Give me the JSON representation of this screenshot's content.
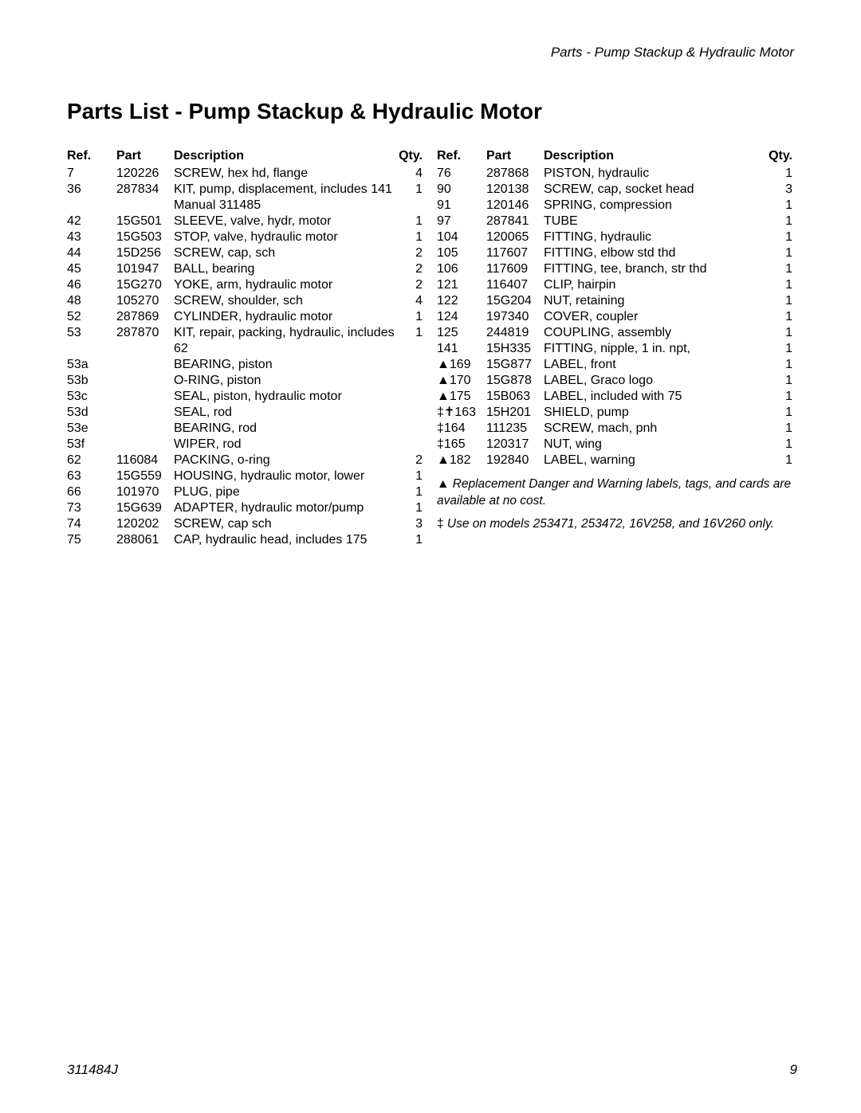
{
  "header": {
    "section": "Parts - Pump Stackup & Hydraulic Motor"
  },
  "title": "Parts List - Pump Stackup & Hydraulic Motor",
  "table_head": {
    "ref": "Ref.",
    "part": "Part",
    "desc": "Description",
    "qty": "Qty."
  },
  "left_rows": [
    {
      "ref": "7",
      "part": "120226",
      "desc": "SCREW, hex hd, flange",
      "qty": "4"
    },
    {
      "ref": "36",
      "part": "287834",
      "desc": "KIT, pump, displacement, includes 141",
      "qty": "1"
    },
    {
      "ref": "",
      "part": "",
      "desc": "Manual 311485",
      "qty": ""
    },
    {
      "ref": "42",
      "part": "15G501",
      "desc": "SLEEVE, valve, hydr, motor",
      "qty": "1"
    },
    {
      "ref": "43",
      "part": "15G503",
      "desc": "STOP, valve, hydraulic motor",
      "qty": "1"
    },
    {
      "ref": "44",
      "part": "15D256",
      "desc": "SCREW, cap, sch",
      "qty": "2"
    },
    {
      "ref": "45",
      "part": "101947",
      "desc": "BALL, bearing",
      "qty": "2"
    },
    {
      "ref": "46",
      "part": "15G270",
      "desc": "YOKE, arm, hydraulic motor",
      "qty": "2"
    },
    {
      "ref": "48",
      "part": "105270",
      "desc": "SCREW, shoulder, sch",
      "qty": "4"
    },
    {
      "ref": "52",
      "part": "287869",
      "desc": "CYLINDER, hydraulic motor",
      "qty": "1"
    },
    {
      "ref": "53",
      "part": "287870",
      "desc": "KIT, repair, packing, hydraulic, includes 62",
      "qty": "1"
    },
    {
      "ref": "53a",
      "part": "",
      "desc": "BEARING, piston",
      "qty": ""
    },
    {
      "ref": "53b",
      "part": "",
      "desc": "O-RING, piston",
      "qty": ""
    },
    {
      "ref": "53c",
      "part": "",
      "desc": "SEAL, piston, hydraulic motor",
      "qty": ""
    },
    {
      "ref": "53d",
      "part": "",
      "desc": "SEAL, rod",
      "qty": ""
    },
    {
      "ref": "53e",
      "part": "",
      "desc": "BEARING, rod",
      "qty": ""
    },
    {
      "ref": "53f",
      "part": "",
      "desc": "WIPER, rod",
      "qty": ""
    },
    {
      "ref": "62",
      "part": "116084",
      "desc": "PACKING, o-ring",
      "qty": "2"
    },
    {
      "ref": "63",
      "part": "15G559",
      "desc": "HOUSING, hydraulic motor, lower",
      "qty": "1"
    },
    {
      "ref": "66",
      "part": "101970",
      "desc": "PLUG, pipe",
      "qty": "1"
    },
    {
      "ref": "73",
      "part": "15G639",
      "desc": "ADAPTER, hydraulic motor/pump",
      "qty": "1"
    },
    {
      "ref": "74",
      "part": "120202",
      "desc": "SCREW, cap sch",
      "qty": "3"
    },
    {
      "ref": "75",
      "part": "288061",
      "desc": "CAP, hydraulic head, includes 175",
      "qty": "1"
    }
  ],
  "right_rows": [
    {
      "ref": "76",
      "part": "287868",
      "desc": "PISTON, hydraulic",
      "qty": "1"
    },
    {
      "ref": "90",
      "part": "120138",
      "desc": "SCREW, cap, socket head",
      "qty": "3"
    },
    {
      "ref": "91",
      "part": "120146",
      "desc": "SPRING, compression",
      "qty": "1"
    },
    {
      "ref": "97",
      "part": "287841",
      "desc": "TUBE",
      "qty": "1"
    },
    {
      "ref": "104",
      "part": "120065",
      "desc": "FITTING, hydraulic",
      "qty": "1"
    },
    {
      "ref": "105",
      "part": "117607",
      "desc": "FITTING, elbow std thd",
      "qty": "1"
    },
    {
      "ref": "106",
      "part": "117609",
      "desc": "FITTING, tee, branch, str thd",
      "qty": "1"
    },
    {
      "ref": "121",
      "part": "116407",
      "desc": "CLIP, hairpin",
      "qty": "1"
    },
    {
      "ref": "122",
      "part": "15G204",
      "desc": "NUT, retaining",
      "qty": "1"
    },
    {
      "ref": "124",
      "part": "197340",
      "desc": "COVER, coupler",
      "qty": "1"
    },
    {
      "ref": "125",
      "part": "244819",
      "desc": "COUPLING, assembly",
      "qty": "1"
    },
    {
      "ref": "141",
      "part": "15H335",
      "desc": "FITTING, nipple, 1 in. npt,",
      "qty": "1"
    },
    {
      "ref": "▲169",
      "part": "15G877",
      "desc": "LABEL, front",
      "qty": "1"
    },
    {
      "ref": "▲170",
      "part": "15G878",
      "desc": "LABEL, Graco logo",
      "qty": "1"
    },
    {
      "ref": "▲175",
      "part": "15B063",
      "desc": "LABEL, included with 75",
      "qty": "1"
    },
    {
      "ref": "‡✝163",
      "part": "15H201",
      "desc": "SHIELD, pump",
      "qty": "1"
    },
    {
      "ref": "‡164",
      "part": "111235",
      "desc": "SCREW, mach, pnh",
      "qty": "1"
    },
    {
      "ref": "‡165",
      "part": "120317",
      "desc": "NUT, wing",
      "qty": "1"
    },
    {
      "ref": "▲182",
      "part": "192840",
      "desc": "LABEL, warning",
      "qty": "1"
    }
  ],
  "notes": {
    "line1_prefix": "▲",
    "line1": " Replacement Danger and Warning labels, tags, and cards are available at no cost.",
    "line2_prefix": "‡",
    "line2": " Use on models 253471, 253472, 16V258, and 16V260 only."
  },
  "footer": {
    "doc": "311484J",
    "page": "9"
  }
}
